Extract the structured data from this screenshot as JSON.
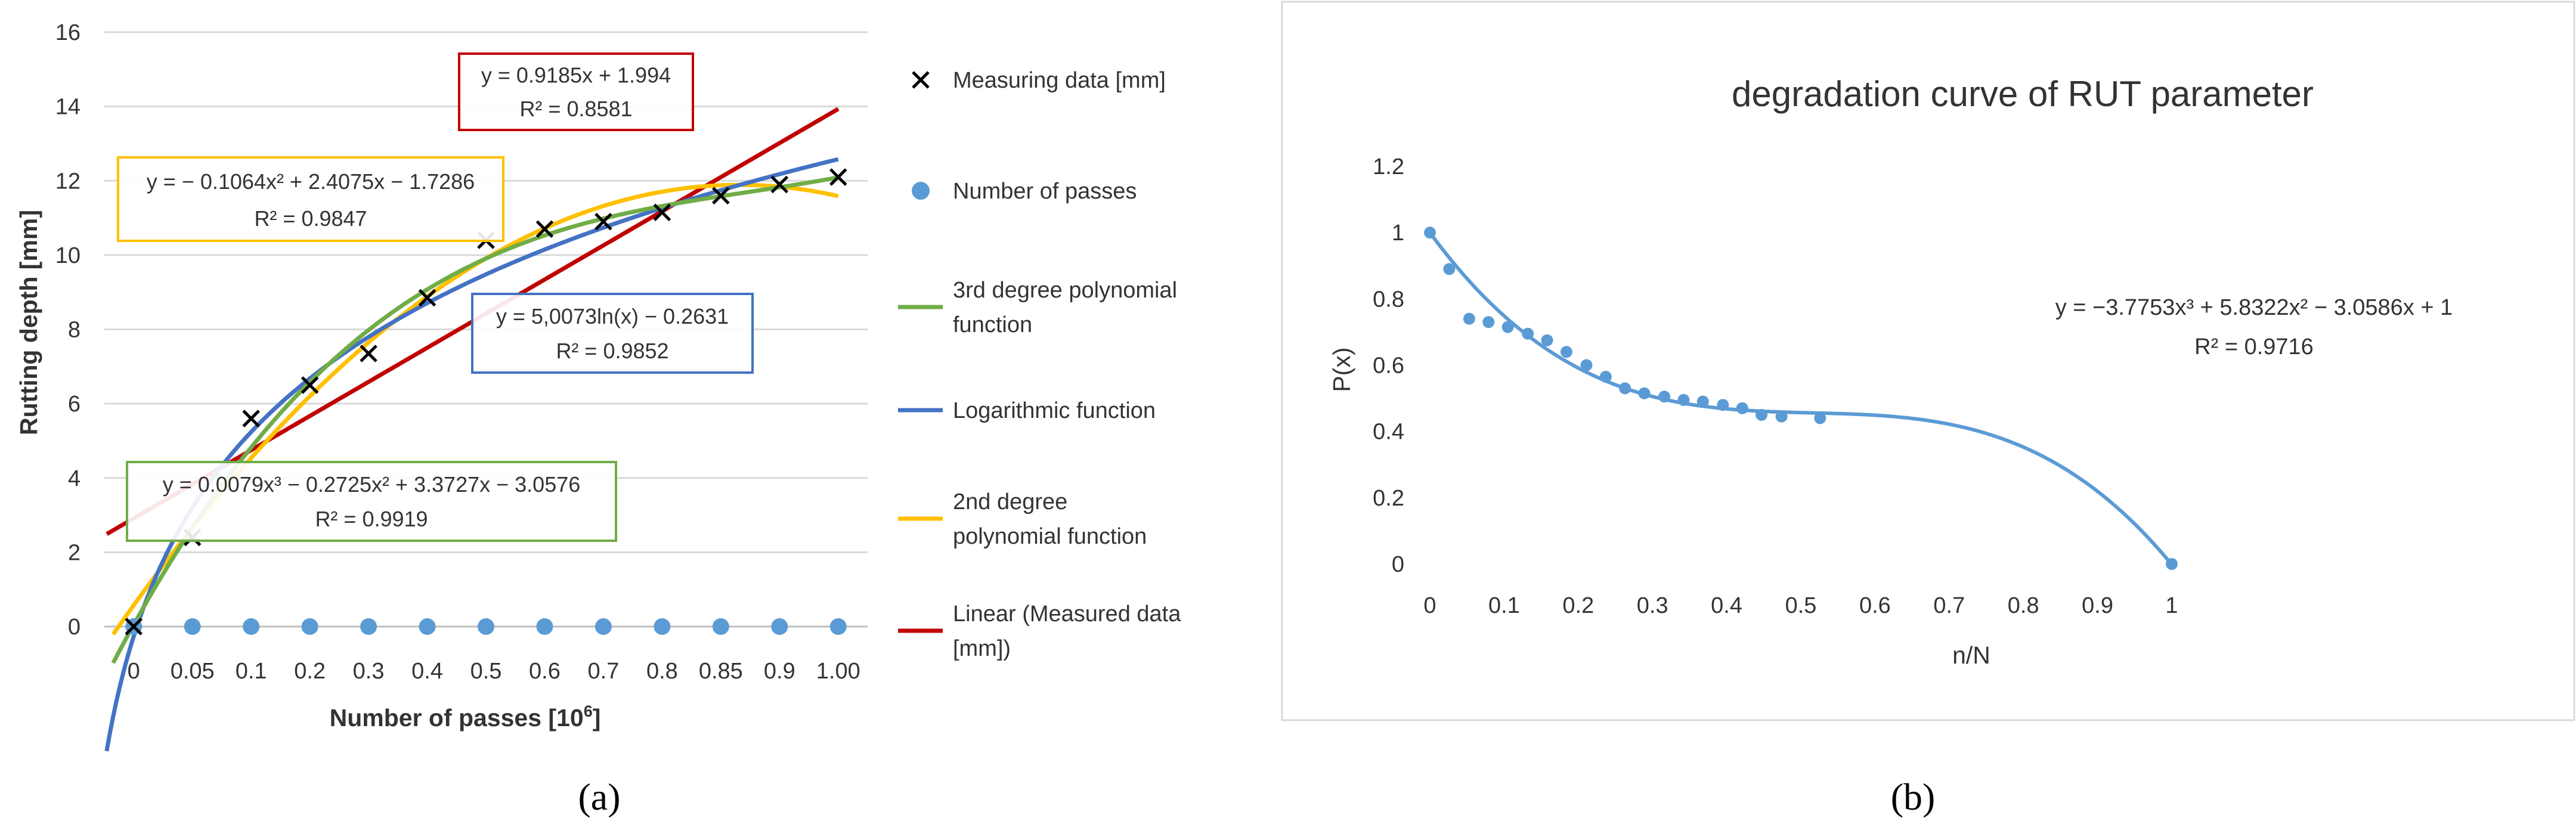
{
  "chart_data": [
    {
      "type": "scatter",
      "panel_label": "(a)",
      "title": "",
      "xlabel": "Number of passes [10^6]",
      "xlabel_main": "Number of passes [10",
      "xlabel_sup": "6",
      "xlabel_end": "]",
      "ylabel": "Rutting depth [mm]",
      "x_tick_labels": [
        "0",
        "0.05",
        "0.1",
        "0.2",
        "0.3",
        "0.4",
        "0.5",
        "0.6",
        "0.7",
        "0.8",
        "0.85",
        "0.9",
        "1.00"
      ],
      "y_ticks": [
        0,
        2,
        4,
        6,
        8,
        10,
        12,
        14,
        16
      ],
      "ylim": [
        0,
        16
      ],
      "grid": true,
      "legend_position": "right",
      "series": [
        {
          "name": "Measuring data [mm]",
          "kind": "marker-x",
          "color": "#000000",
          "values": [
            0,
            2.4,
            5.6,
            6.5,
            7.35,
            8.85,
            10.4,
            10.7,
            10.9,
            11.15,
            11.6,
            11.9,
            12.1
          ]
        },
        {
          "name": "Number of passes",
          "kind": "marker-dot",
          "color": "#5b9bd5",
          "values": [
            0,
            0,
            0,
            0,
            0,
            0,
            0,
            0,
            0,
            0,
            0,
            0,
            0
          ]
        },
        {
          "name": "3rd degree polynomial function",
          "kind": "trend",
          "color": "#70ad47",
          "model": "poly3",
          "coeffs": [
            -3.0576,
            3.3727,
            -0.2725,
            0.0079
          ]
        },
        {
          "name": "Logarithmic function",
          "kind": "trend",
          "color": "#4472c4",
          "model": "log",
          "coeffs": [
            5.0073,
            -0.2631
          ]
        },
        {
          "name": "2nd degree polynomial function",
          "kind": "trend",
          "color": "#ffc000",
          "model": "poly2",
          "coeffs": [
            -1.7286,
            2.4075,
            -0.1064
          ]
        },
        {
          "name": "Linear (Measured data [mm])",
          "kind": "trend",
          "color": "#c00000",
          "model": "linear",
          "coeffs": [
            1.994,
            0.9185
          ]
        }
      ],
      "legend": [
        {
          "lines": [
            "Measuring data [mm]"
          ],
          "kind": "marker-x",
          "color": "#000000"
        },
        {
          "lines": [
            "Number of passes"
          ],
          "kind": "marker-dot",
          "color": "#5b9bd5"
        },
        {
          "lines": [
            "3rd degree polynomial",
            "function"
          ],
          "kind": "line",
          "color": "#70ad47"
        },
        {
          "lines": [
            "Logarithmic function"
          ],
          "kind": "line",
          "color": "#4472c4"
        },
        {
          "lines": [
            "2nd degree",
            "polynomial function"
          ],
          "kind": "line",
          "color": "#ffc000"
        },
        {
          "lines": [
            "Linear (Measured data",
            "[mm])"
          ],
          "kind": "line",
          "color": "#c00000"
        }
      ],
      "annotations": [
        {
          "name": "linear",
          "color": "#c00000",
          "lines": [
            "y = 0.9185x + 1.994",
            "R² = 0.8581"
          ]
        },
        {
          "name": "poly2",
          "color": "#ffc000",
          "lines": [
            "y = − 0.1064x² + 2.4075x − 1.7286",
            "R² = 0.9847"
          ]
        },
        {
          "name": "log",
          "color": "#4472c4",
          "lines": [
            "y = 5,0073ln(x) − 0.2631",
            "R² = 0.9852"
          ]
        },
        {
          "name": "poly3",
          "color": "#70ad47",
          "lines": [
            "y = 0.0079x³ − 0.2725x² + 3.3727x − 3.0576",
            "R² = 0.9919"
          ]
        }
      ]
    },
    {
      "type": "scatter",
      "panel_label": "(b)",
      "title": "degradation curve of RUT parameter",
      "xlabel": "n/N",
      "ylabel": "P(x)",
      "x_ticks": [
        0,
        0.1,
        0.2,
        0.3,
        0.4,
        0.5,
        0.6,
        0.7,
        0.8,
        0.9,
        1
      ],
      "x_tick_labels": [
        "0",
        "0.1",
        "0.2",
        "0.3",
        "0.4",
        "0.5",
        "0.6",
        "0.7",
        "0.8",
        "0.9",
        "1"
      ],
      "y_ticks": [
        0,
        0.2,
        0.4,
        0.6,
        0.8,
        1,
        1.2
      ],
      "y_tick_labels": [
        "0",
        "0.2",
        "0.4",
        "0.6",
        "0.8",
        "1",
        "1.2"
      ],
      "xlim": [
        0,
        1
      ],
      "ylim": [
        0,
        1.2
      ],
      "grid": false,
      "color": "#5b9bd5",
      "points": [
        [
          0,
          1.0
        ],
        [
          0.026,
          0.89
        ],
        [
          0.053,
          0.74
        ],
        [
          0.079,
          0.73
        ],
        [
          0.105,
          0.715
        ],
        [
          0.132,
          0.695
        ],
        [
          0.158,
          0.675
        ],
        [
          0.184,
          0.64
        ],
        [
          0.211,
          0.6
        ],
        [
          0.237,
          0.565
        ],
        [
          0.263,
          0.53
        ],
        [
          0.289,
          0.515
        ],
        [
          0.316,
          0.505
        ],
        [
          0.342,
          0.495
        ],
        [
          0.368,
          0.49
        ],
        [
          0.395,
          0.48
        ],
        [
          0.421,
          0.47
        ],
        [
          0.447,
          0.45
        ],
        [
          0.474,
          0.445
        ],
        [
          0.526,
          0.44
        ],
        [
          1.0,
          0.0
        ]
      ],
      "trend": {
        "model": "poly3",
        "coeffs": [
          1,
          -3.0586,
          5.8322,
          -3.7753
        ]
      },
      "annotation": {
        "lines": [
          "y = −3.7753x³ + 5.8322x² − 3.0586x + 1",
          "R² = 0.9716"
        ]
      }
    }
  ]
}
